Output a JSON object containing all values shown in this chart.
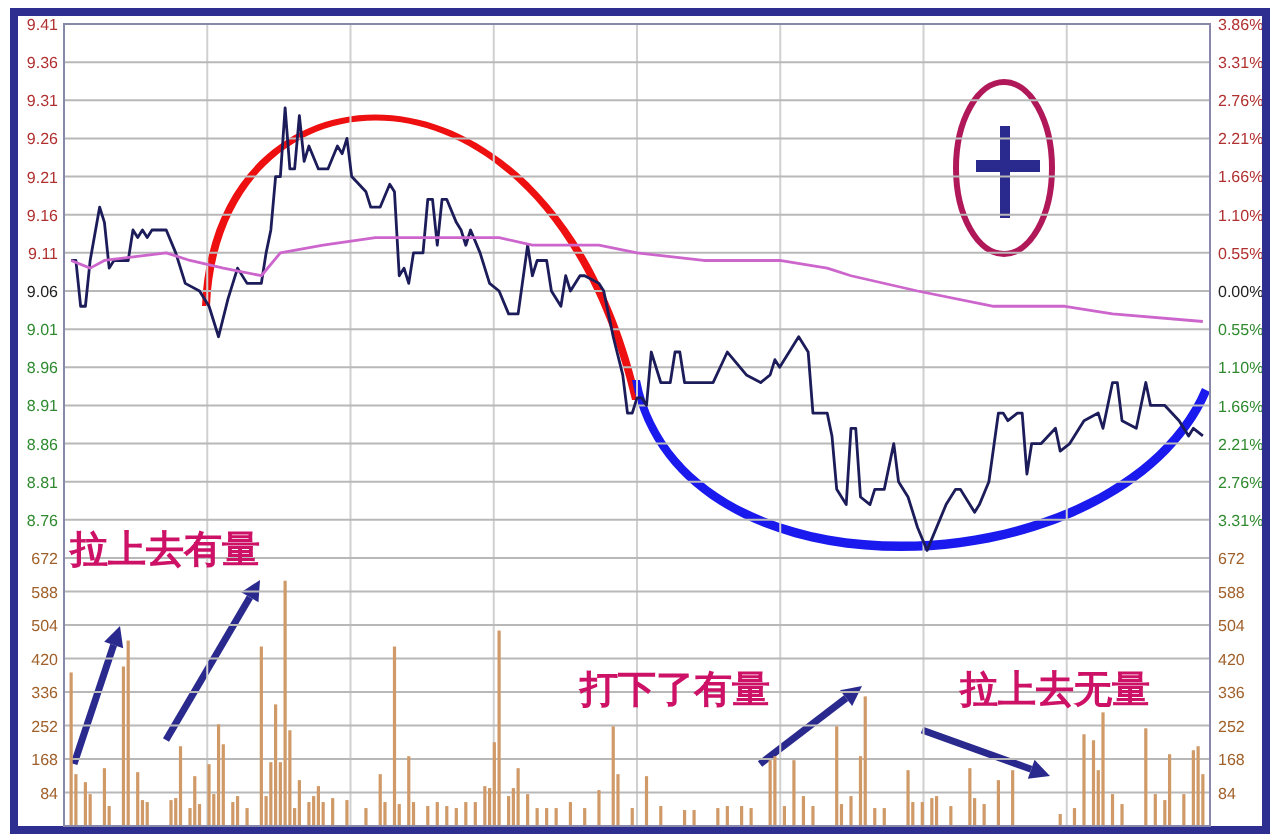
{
  "chart_data": [
    {
      "type": "line",
      "categories": [
        null,
        null,
        null,
        null,
        null,
        null,
        null,
        null,
        null,
        null,
        null,
        null,
        null,
        null,
        null,
        null,
        null,
        null,
        null,
        null,
        null,
        null,
        null,
        null,
        null,
        null,
        null,
        null,
        null,
        null,
        null,
        null,
        null,
        null,
        null,
        null,
        null,
        null,
        null,
        null,
        null,
        null,
        null,
        null,
        null,
        null,
        null,
        null,
        null,
        null,
        null,
        null,
        null,
        null,
        null,
        null,
        null,
        null,
        null,
        null,
        null,
        null,
        null,
        null,
        null,
        null,
        null,
        null,
        null,
        null,
        null,
        null,
        null,
        null,
        null,
        null,
        null,
        null,
        null,
        null,
        null,
        null,
        null,
        null,
        null,
        null,
        null,
        null,
        null,
        null,
        null,
        null,
        null,
        null,
        null,
        null,
        null,
        null,
        null,
        null,
        null,
        null,
        null,
        null,
        null,
        null,
        null,
        null,
        null,
        null,
        null,
        null,
        null,
        null,
        null,
        null,
        null,
        null,
        null,
        null,
        null,
        null,
        null,
        null,
        null,
        null,
        null,
        null,
        null,
        null,
        null,
        null,
        null,
        null,
        null,
        null,
        null,
        null,
        null,
        null,
        null,
        null,
        null,
        null,
        null,
        null,
        null,
        null,
        null,
        null,
        null,
        null,
        null,
        null,
        null,
        null,
        null,
        null,
        null,
        null,
        null,
        null,
        null,
        null,
        null,
        null,
        null,
        null,
        null,
        null,
        null,
        null,
        null,
        null,
        null,
        null,
        null,
        null,
        null,
        null,
        null,
        null,
        null,
        null,
        null,
        null,
        null,
        null,
        null,
        null,
        null,
        null,
        null,
        null,
        null,
        null,
        null,
        null,
        null,
        null,
        null,
        null,
        null,
        null,
        null,
        null,
        null,
        null,
        null,
        null,
        null,
        null,
        null,
        null,
        null,
        null,
        null,
        null,
        null,
        null,
        null,
        null,
        null,
        null,
        null,
        null,
        null,
        null,
        null,
        null,
        null,
        null,
        null,
        null,
        null,
        null,
        null,
        null,
        null,
        null,
        null
      ],
      "ylim": [
        8.71,
        9.41
      ],
      "yticks": [
        9.41,
        9.36,
        9.31,
        9.26,
        9.21,
        9.16,
        9.11,
        9.06,
        9.01,
        8.96,
        8.91,
        8.86,
        8.81,
        8.76
      ],
      "y2lim": [
        -3.86,
        3.86
      ],
      "y2ticks": [
        {
          "value": 3.86,
          "label": "3.86%"
        },
        {
          "value": 3.31,
          "label": "3.31%"
        },
        {
          "value": 2.76,
          "label": "2.76%"
        },
        {
          "value": 2.21,
          "label": "2.21%"
        },
        {
          "value": 1.66,
          "label": "1.66%"
        },
        {
          "value": 1.1,
          "label": "1.10%"
        },
        {
          "value": 0.55,
          "label": "0.55%"
        },
        {
          "value": 0,
          "label": "0.00%"
        },
        {
          "value": -0.55,
          "label": "0.55%"
        },
        {
          "value": -1.1,
          "label": "1.10%"
        },
        {
          "value": -1.66,
          "label": "1.66%"
        },
        {
          "value": -2.21,
          "label": "2.21%"
        },
        {
          "value": -2.76,
          "label": "2.76%"
        },
        {
          "value": -3.31,
          "label": "3.31%"
        }
      ],
      "grid": true,
      "series": [
        {
          "color": "#1c1c5a",
          "values": [
            null,
            9.1,
            9.1,
            9.04,
            9.04,
            9.1,
            null,
            9.17,
            9.15,
            9.09,
            9.1,
            null,
            null,
            9.1,
            9.14,
            9.13,
            9.14,
            9.13,
            9.14,
            null,
            null,
            9.14,
            null,
            9.11,
            null,
            9.07,
            null,
            null,
            9.06,
            null,
            9.04,
            null,
            9.0,
            null,
            9.05,
            null,
            9.09,
            null,
            9.07,
            null,
            null,
            9.07,
            9.11,
            9.14,
            9.21,
            9.21,
            9.3,
            9.22,
            9.22,
            9.29,
            9.23,
            9.25,
            null,
            9.22,
            null,
            9.22,
            null,
            9.25,
            9.24,
            9.26,
            9.21,
            null,
            null,
            9.19,
            9.17,
            null,
            9.17,
            null,
            9.2,
            9.19,
            9.08,
            9.09,
            9.07,
            9.11,
            null,
            9.11,
            9.18,
            9.18,
            9.12,
            9.18,
            9.18,
            null,
            9.15,
            9.14,
            9.12,
            9.14,
            null,
            9.11,
            null,
            9.07,
            null,
            9.06,
            null,
            9.03,
            null,
            9.03,
            null,
            9.12,
            9.08,
            9.1,
            null,
            9.1,
            9.06,
            null,
            9.04,
            9.08,
            9.06,
            null,
            9.08,
            9.08,
            null,
            null,
            9.07,
            9.06,
            null,
            9.0,
            null,
            8.95,
            8.9,
            8.9,
            8.92,
            8.92,
            8.91,
            8.98,
            null,
            8.94,
            null,
            8.94,
            8.98,
            8.98,
            8.94,
            null,
            null,
            8.94,
            8.94,
            null,
            8.94,
            null,
            null,
            8.98,
            null,
            null,
            null,
            8.95,
            null,
            null,
            8.94,
            null,
            8.95,
            8.97,
            8.96,
            null,
            null,
            null,
            9.0,
            null,
            8.98,
            8.9,
            null,
            null,
            8.9,
            8.87,
            8.8,
            null,
            8.78,
            8.88,
            8.88,
            8.79,
            null,
            8.78,
            8.8,
            null,
            8.8,
            null,
            8.86,
            8.81,
            null,
            8.79,
            null,
            8.75,
            null,
            8.72,
            null,
            null,
            null,
            8.78,
            null,
            8.8,
            8.8,
            null,
            null,
            8.77,
            8.78,
            null,
            8.81,
            null,
            8.9,
            8.9,
            8.89,
            null,
            8.9,
            8.9,
            8.82,
            8.86,
            null,
            8.86,
            null,
            null,
            8.88,
            8.85,
            null,
            8.86,
            null,
            null,
            8.89,
            null,
            null,
            8.9,
            8.88,
            null,
            8.94,
            8.94,
            8.89,
            null,
            null,
            8.88,
            null,
            8.94,
            8.91,
            null,
            null,
            8.91,
            null,
            null,
            8.89,
            null,
            8.87,
            8.88,
            null,
            8.87,
            null
          ]
        },
        {
          "color": "#cc66cc",
          "values": [
            null,
            9.1,
            null,
            null,
            null,
            9.09,
            null,
            null,
            9.1,
            null,
            null,
            null,
            null,
            null,
            null,
            null,
            null,
            null,
            null,
            null,
            null,
            9.11,
            null,
            null,
            null,
            null,
            9.1,
            null,
            null,
            null,
            null,
            null,
            null,
            9.09,
            null,
            null,
            null,
            null,
            null,
            null,
            null,
            9.08,
            null,
            null,
            null,
            9.11,
            null,
            null,
            null,
            null,
            null,
            null,
            null,
            null,
            9.12,
            null,
            null,
            null,
            null,
            null,
            null,
            null,
            null,
            null,
            null,
            9.13,
            null,
            null,
            null,
            null,
            9.13,
            null,
            null,
            null,
            null,
            null,
            null,
            null,
            null,
            null,
            null,
            null,
            null,
            null,
            null,
            null,
            null,
            null,
            null,
            null,
            null,
            9.13,
            null,
            null,
            null,
            null,
            null,
            null,
            9.12,
            null,
            null,
            null,
            null,
            null,
            null,
            null,
            null,
            null,
            null,
            null,
            null,
            null,
            9.12,
            null,
            null,
            null,
            null,
            null,
            null,
            null,
            9.11,
            null,
            null,
            null,
            null,
            null,
            null,
            null,
            null,
            null,
            null,
            null,
            null,
            null,
            9.1,
            null,
            null,
            null,
            null,
            null,
            null,
            null,
            null,
            null,
            null,
            null,
            null,
            null,
            null,
            null,
            9.1,
            null,
            null,
            null,
            null,
            null,
            null,
            null,
            null,
            null,
            9.09,
            null,
            null,
            null,
            null,
            9.08,
            null,
            null,
            null,
            null,
            null,
            null,
            null,
            null,
            null,
            null,
            null,
            null,
            null,
            9.06,
            null,
            null,
            null,
            null,
            null,
            null,
            null,
            null,
            null,
            null,
            null,
            null,
            null,
            null,
            null,
            9.04,
            null,
            null,
            null,
            null,
            null,
            null,
            null,
            null,
            null,
            null,
            null,
            null,
            null,
            null,
            9.04,
            null,
            null,
            null,
            null,
            null,
            null,
            null,
            null,
            null,
            9.03,
            null,
            null,
            null,
            null,
            null,
            null,
            null,
            null,
            null,
            null,
            null,
            null,
            null,
            null,
            null,
            null,
            null,
            null,
            9.02,
            null
          ]
        }
      ]
    },
    {
      "type": "bar",
      "categories": [
        null,
        null,
        null,
        null,
        null,
        null,
        null,
        null,
        null,
        null,
        null,
        null,
        null,
        null,
        null,
        null,
        null,
        null,
        null,
        null,
        null,
        null,
        null,
        null,
        null,
        null,
        null,
        null,
        null,
        null,
        null,
        null,
        null,
        null,
        null,
        null,
        null,
        null,
        null,
        null,
        null,
        null,
        null,
        null,
        null,
        null,
        null,
        null,
        null,
        null,
        null,
        null,
        null,
        null,
        null,
        null,
        null,
        null,
        null,
        null,
        null,
        null,
        null,
        null,
        null,
        null,
        null,
        null,
        null,
        null,
        null,
        null,
        null,
        null,
        null,
        null,
        null,
        null,
        null,
        null,
        null,
        null,
        null,
        null,
        null,
        null,
        null,
        null,
        null,
        null,
        null,
        null,
        null,
        null,
        null,
        null,
        null,
        null,
        null,
        null,
        null,
        null,
        null,
        null,
        null,
        null,
        null,
        null,
        null,
        null,
        null,
        null,
        null,
        null,
        null,
        null,
        null,
        null,
        null,
        null,
        null,
        null,
        null,
        null,
        null,
        null,
        null,
        null,
        null,
        null,
        null,
        null,
        null,
        null,
        null,
        null,
        null,
        null,
        null,
        null,
        null,
        null,
        null,
        null,
        null,
        null,
        null,
        null,
        null,
        null,
        null,
        null,
        null,
        null,
        null,
        null,
        null,
        null,
        null,
        null,
        null,
        null,
        null,
        null,
        null,
        null,
        null,
        null,
        null,
        null,
        null,
        null,
        null,
        null,
        null,
        null,
        null,
        null,
        null,
        null,
        null,
        null,
        null,
        null,
        null,
        null,
        null,
        null,
        null,
        null,
        null,
        null,
        null,
        null,
        null,
        null,
        null,
        null,
        null,
        null,
        null,
        null,
        null,
        null,
        null,
        null,
        null,
        null,
        null,
        null,
        null,
        null,
        null,
        null,
        null,
        null,
        null,
        null,
        null,
        null,
        null,
        null,
        null,
        null,
        null,
        null,
        null,
        null,
        null,
        null,
        null,
        null,
        null,
        null,
        null,
        null,
        null,
        null,
        null,
        null,
        null
      ],
      "ylim": [
        0,
        672
      ],
      "yticks": [
        84,
        168,
        252,
        336,
        420,
        504,
        588,
        672
      ],
      "y2lim": [
        0,
        672
      ],
      "y2ticks": [
        84,
        168,
        252,
        336,
        420,
        504,
        588,
        672
      ],
      "grid": true,
      "color": "#d09a68",
      "values": [
        null,
        385,
        130,
        null,
        110,
        80,
        null,
        null,
        145,
        50,
        null,
        null,
        400,
        465,
        null,
        135,
        65,
        60,
        null,
        null,
        null,
        null,
        65,
        70,
        200,
        null,
        45,
        125,
        55,
        null,
        155,
        80,
        255,
        205,
        null,
        60,
        75,
        null,
        45,
        null,
        null,
        450,
        75,
        160,
        305,
        160,
        615,
        240,
        45,
        115,
        null,
        60,
        75,
        100,
        60,
        null,
        70,
        null,
        null,
        65,
        null,
        null,
        null,
        45,
        null,
        null,
        130,
        60,
        null,
        450,
        55,
        null,
        175,
        60,
        null,
        null,
        50,
        null,
        60,
        null,
        50,
        null,
        45,
        null,
        60,
        null,
        60,
        null,
        100,
        95,
        210,
        490,
        null,
        75,
        95,
        145,
        null,
        80,
        null,
        45,
        null,
        45,
        null,
        45,
        null,
        null,
        60,
        null,
        null,
        45,
        null,
        null,
        90,
        null,
        null,
        250,
        130,
        null,
        null,
        45,
        null,
        null,
        125,
        null,
        null,
        50,
        null,
        null,
        null,
        null,
        40,
        null,
        40,
        null,
        null,
        null,
        null,
        45,
        null,
        50,
        null,
        null,
        50,
        null,
        45,
        null,
        null,
        null,
        165,
        175,
        null,
        50,
        null,
        165,
        null,
        75,
        null,
        50,
        null,
        null,
        null,
        null,
        250,
        55,
        null,
        75,
        null,
        175,
        325,
        null,
        45,
        null,
        45,
        null,
        null,
        null,
        null,
        140,
        60,
        null,
        60,
        null,
        70,
        75,
        null,
        null,
        50,
        null,
        null,
        null,
        145,
        70,
        null,
        55,
        null,
        null,
        115,
        null,
        null,
        140,
        null,
        null,
        null,
        null,
        null,
        null,
        null,
        null,
        null,
        30,
        null,
        null,
        45,
        null,
        230,
        null,
        215,
        140,
        285,
        null,
        80,
        null,
        55,
        null,
        null,
        null,
        null,
        245,
        null,
        80,
        null,
        65,
        180,
        null,
        null,
        80,
        null,
        190,
        200,
        130,
        null
      ],
      "annotations": [
        "拉上去有量",
        "打下了有量",
        "拉上去无量"
      ]
    }
  ]
}
